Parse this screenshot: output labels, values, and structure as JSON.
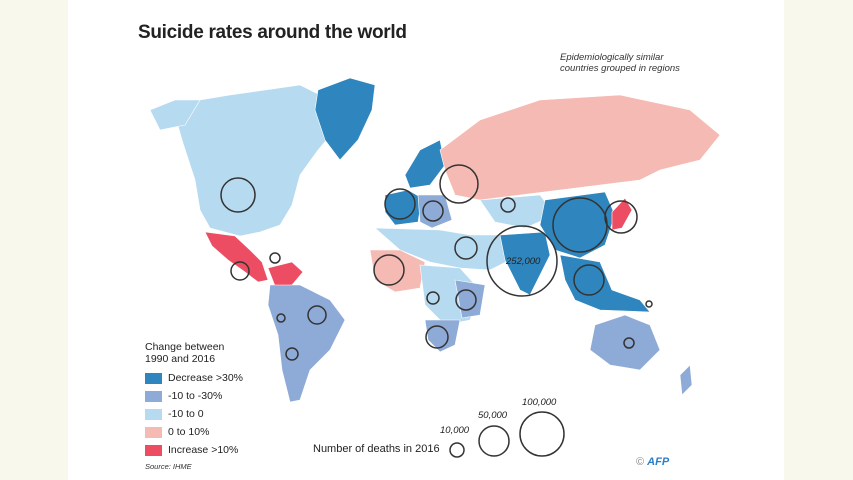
{
  "title": "Suicide rates around the world",
  "subtitle_line1": "Epidemiologically similar",
  "subtitle_line2": "countries grouped in regions",
  "legend": {
    "heading_line1": "Change between",
    "heading_line2": "1990 and 2016",
    "items": [
      {
        "label": "Decrease >30%",
        "color": "#2f86be"
      },
      {
        "label": "-10 to -30%",
        "color": "#8eaad6"
      },
      {
        "label": "-10 to 0",
        "color": "#b6daf0"
      },
      {
        "label": "0 to 10%",
        "color": "#f5bab3"
      },
      {
        "label": "Increase >10%",
        "color": "#ec4d63"
      }
    ]
  },
  "size_legend": {
    "label": "Number of deaths in 2016",
    "sizes": [
      "10,000",
      "50,000",
      "100,000"
    ]
  },
  "annotation_india": "252,000",
  "source": "Source: IHME",
  "credit_symbol": "©",
  "credit": "AFP"
}
